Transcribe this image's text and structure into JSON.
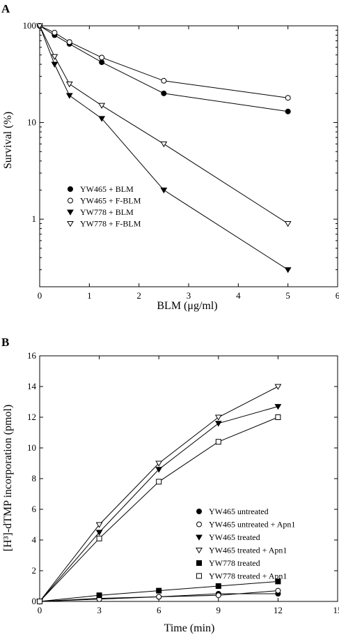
{
  "chart_data": [
    {
      "type": "scatter",
      "panel_label": "A",
      "xlabel": "BLM (μg/ml)",
      "ylabel": "Survival (%)",
      "xlim": [
        0,
        6
      ],
      "ylim": [
        0.2,
        100
      ],
      "yscale": "log",
      "x_ticks": [
        "0",
        "1",
        "2",
        "3",
        "4",
        "5",
        "6"
      ],
      "y_ticks": [
        "1",
        "10",
        "100"
      ],
      "grid": false,
      "legend_placement": "bottom-left",
      "series": [
        {
          "name": "YW465 + BLM",
          "marker": "circle-filled",
          "x": [
            0,
            0.3,
            0.6,
            1.25,
            2.5,
            5
          ],
          "y": [
            100,
            80,
            65,
            42,
            20,
            13
          ]
        },
        {
          "name": "YW465 + F-BLM",
          "marker": "circle-open",
          "x": [
            0,
            0.3,
            0.6,
            1.25,
            2.5,
            5
          ],
          "y": [
            100,
            85,
            68,
            47,
            27,
            18
          ]
        },
        {
          "name": "YW778 + BLM",
          "marker": "triangle-down-filled",
          "x": [
            0,
            0.3,
            0.6,
            1.25,
            2.5,
            5
          ],
          "y": [
            100,
            40,
            19,
            11,
            2,
            0.3
          ]
        },
        {
          "name": "YW778 + F-BLM",
          "marker": "triangle-down-open",
          "x": [
            0,
            0.3,
            0.6,
            1.25,
            2.5,
            5
          ],
          "y": [
            100,
            48,
            25,
            15,
            6,
            0.9
          ]
        }
      ]
    },
    {
      "type": "scatter",
      "panel_label": "B",
      "xlabel": "Time (min)",
      "ylabel": "[H³]-dTMP incorporation (pmol)",
      "xlim": [
        0,
        15
      ],
      "ylim": [
        0,
        16
      ],
      "yscale": "linear",
      "x_ticks": [
        "0",
        "3",
        "6",
        "9",
        "12",
        "15"
      ],
      "y_ticks": [
        "0",
        "2",
        "4",
        "6",
        "8",
        "10",
        "12",
        "14",
        "16"
      ],
      "grid": false,
      "legend_placement": "bottom-right",
      "series": [
        {
          "name": "YW465 untreated",
          "marker": "circle-filled",
          "x": [
            0,
            3,
            6,
            9,
            12
          ],
          "y": [
            0,
            0.2,
            0.3,
            0.5,
            0.5
          ]
        },
        {
          "name": "YW465 untreated + Apn1",
          "marker": "circle-open",
          "x": [
            0,
            3,
            6,
            9,
            12
          ],
          "y": [
            0,
            0.15,
            0.3,
            0.4,
            0.7
          ]
        },
        {
          "name": "YW465 treated",
          "marker": "triangle-down-filled",
          "x": [
            0,
            3,
            6,
            9,
            12
          ],
          "y": [
            0,
            4.5,
            8.6,
            11.6,
            12.7
          ]
        },
        {
          "name": "YW465 treated + Apn1",
          "marker": "triangle-down-open",
          "x": [
            0,
            3,
            6,
            9,
            12
          ],
          "y": [
            0,
            5.0,
            9.0,
            12.0,
            14.0
          ]
        },
        {
          "name": "YW778 treated",
          "marker": "square-filled",
          "x": [
            0,
            3,
            6,
            9,
            12
          ],
          "y": [
            0,
            0.4,
            0.7,
            1.0,
            1.3
          ]
        },
        {
          "name": "YW778 treated + Apn1",
          "marker": "square-open",
          "x": [
            0,
            3,
            6,
            9,
            12
          ],
          "y": [
            0,
            4.1,
            7.8,
            10.4,
            12.0
          ]
        }
      ]
    }
  ]
}
